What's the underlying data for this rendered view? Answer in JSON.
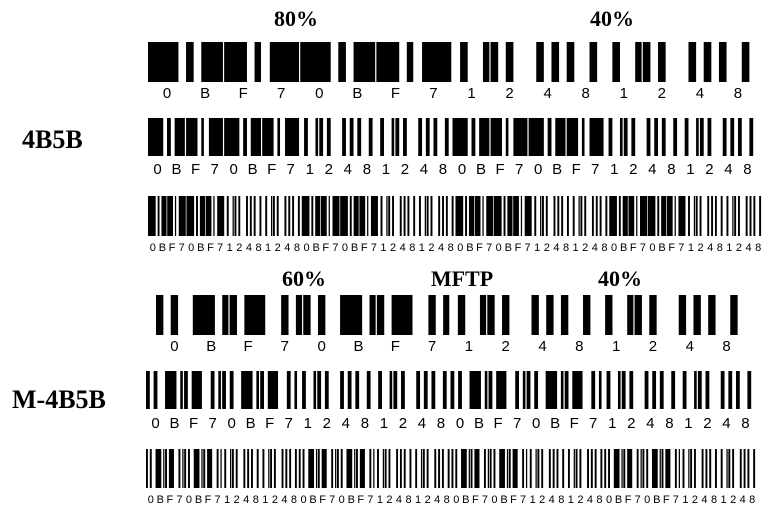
{
  "pct_labels": [
    "80%",
    "40%",
    "60%",
    "MFTP",
    "40%"
  ],
  "row_titles": [
    "4B5B",
    "M-4B5B"
  ],
  "sequence": [
    "0",
    "B",
    "F",
    "7",
    "0",
    "B",
    "F",
    "7",
    "1",
    "2",
    "4",
    "8",
    "1",
    "2",
    "4",
    "8"
  ],
  "colors": {
    "bar": "#000000",
    "background": "#ffffff"
  },
  "codes_4b5b": {
    "0": "11110",
    "1": "01001",
    "2": "10100",
    "4": "01010",
    "7": "01111",
    "8": "10010",
    "B": "10111",
    "F": "11101"
  }
}
